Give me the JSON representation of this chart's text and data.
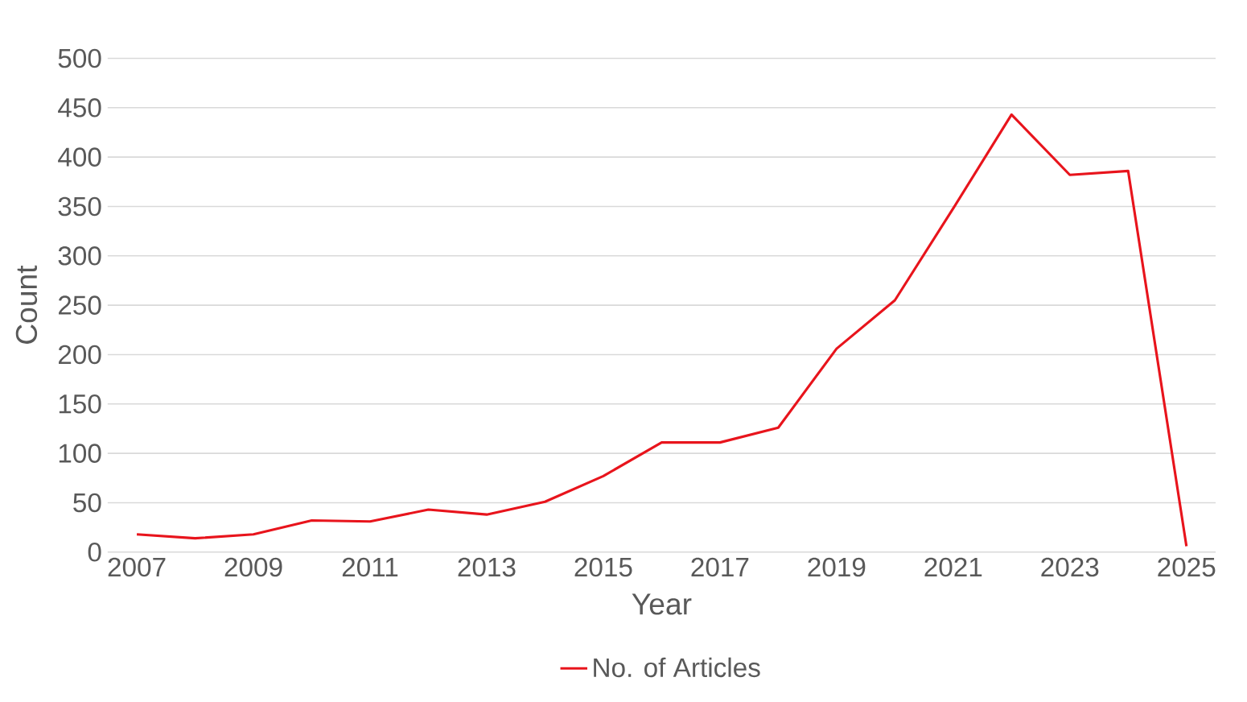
{
  "chart_data": {
    "type": "line",
    "xlabel": "Year",
    "ylabel": "Count",
    "x": [
      2007,
      2008,
      2009,
      2010,
      2011,
      2012,
      2013,
      2014,
      2015,
      2016,
      2017,
      2018,
      2019,
      2020,
      2021,
      2022,
      2023,
      2024,
      2025
    ],
    "series": [
      {
        "name": "No. of Articles",
        "color": "#e8141c",
        "values": [
          18,
          14,
          18,
          32,
          31,
          43,
          38,
          51,
          77,
          111,
          111,
          126,
          206,
          255,
          348,
          443,
          382,
          386,
          6
        ]
      }
    ],
    "xlim": [
      2006.5,
      2025.5
    ],
    "xticks": [
      2007,
      2009,
      2011,
      2013,
      2015,
      2017,
      2019,
      2021,
      2023,
      2025
    ],
    "ylim": [
      0,
      500
    ],
    "yticks": [
      0,
      50,
      100,
      150,
      200,
      250,
      300,
      350,
      400,
      450,
      500
    ],
    "grid": "y",
    "legend": "bottom",
    "marker": "none",
    "line_style": "solid"
  }
}
